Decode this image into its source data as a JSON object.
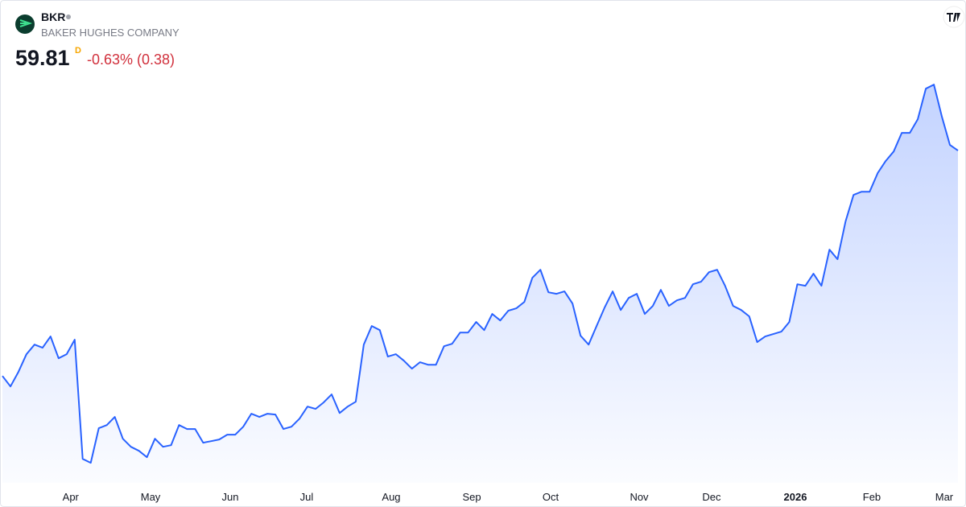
{
  "header": {
    "symbol": "BKR",
    "company": "BAKER HUGHES COMPANY",
    "price": "59.81",
    "interval": "D",
    "change": "-0.63% (0.38)"
  },
  "chart_data": {
    "type": "line",
    "color": "#2962ff",
    "values": [
      40.99,
      40.12,
      41.33,
      42.81,
      43.61,
      43.35,
      44.29,
      42.47,
      42.81,
      44.02,
      34.07,
      33.74,
      36.63,
      36.89,
      37.57,
      35.75,
      35.08,
      34.74,
      34.21,
      35.75,
      35.08,
      35.21,
      36.89,
      36.56,
      36.56,
      35.42,
      35.55,
      35.69,
      36.09,
      36.09,
      36.76,
      37.84,
      37.57,
      37.84,
      37.77,
      36.56,
      36.76,
      37.43,
      38.44,
      38.24,
      38.78,
      39.45,
      37.9,
      38.44,
      38.84,
      43.61,
      45.16,
      44.82,
      42.61,
      42.81,
      42.27,
      41.6,
      42.14,
      41.93,
      41.93,
      43.48,
      43.68,
      44.62,
      44.62,
      45.5,
      44.82,
      46.17,
      45.63,
      46.44,
      46.64,
      47.18,
      49.19,
      49.86,
      47.98,
      47.85,
      48.05,
      47.04,
      44.35,
      43.61,
      45.16,
      46.71,
      48.05,
      46.5,
      47.51,
      47.85,
      46.17,
      46.84,
      48.18,
      46.84,
      47.31,
      47.51,
      48.65,
      48.86,
      49.66,
      49.86,
      48.52,
      46.84,
      46.5,
      45.97,
      43.82,
      44.29,
      44.49,
      44.69,
      45.5,
      48.65,
      48.52,
      49.53,
      48.52,
      51.54,
      50.74,
      53.9,
      56.11,
      56.38,
      56.38,
      57.93,
      58.94,
      59.74,
      61.29,
      61.29,
      62.43,
      64.98,
      65.32,
      62.63,
      60.28,
      59.81
    ],
    "xlim": [
      0,
      119
    ],
    "ylim": [
      32,
      66
    ],
    "xticks": [
      {
        "value": 8.5,
        "label": "Apr"
      },
      {
        "value": 18.45,
        "label": "May"
      },
      {
        "value": 28.37,
        "label": "Jun"
      },
      {
        "value": 37.89,
        "label": "Jul"
      },
      {
        "value": 48.42,
        "label": "Aug"
      },
      {
        "value": 58.45,
        "label": "Sep"
      },
      {
        "value": 68.27,
        "label": "Oct"
      },
      {
        "value": 79.3,
        "label": "Nov"
      },
      {
        "value": 88.32,
        "label": "Dec"
      },
      {
        "value": 98.75,
        "label": "2026"
      },
      {
        "value": 108.27,
        "label": "Feb"
      },
      {
        "value": 117.29,
        "label": "Mar"
      }
    ]
  }
}
